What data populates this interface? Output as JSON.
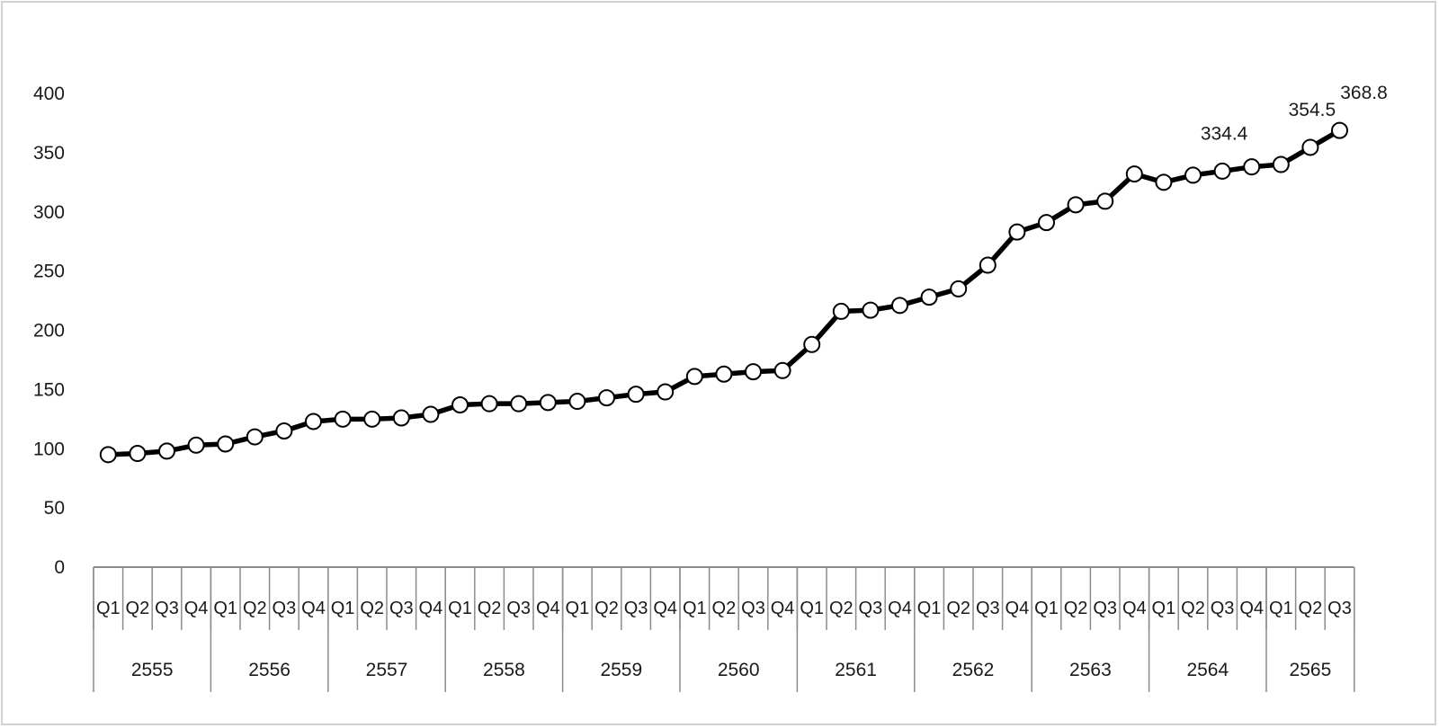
{
  "chart_data": {
    "type": "line",
    "title": "",
    "xlabel": "",
    "ylabel": "",
    "ylim": [
      0,
      400
    ],
    "yticks": [
      "0",
      "50",
      "100",
      "150",
      "200",
      "250",
      "300",
      "350",
      "400"
    ],
    "grid": false,
    "legend": "none",
    "colors": {
      "line": "#000000",
      "marker_fill": "#ffffff",
      "axis": "#8c8c8c",
      "frame": "#d0d0d0"
    },
    "categories": [
      "Q1",
      "Q2",
      "Q3",
      "Q4",
      "Q1",
      "Q2",
      "Q3",
      "Q4",
      "Q1",
      "Q2",
      "Q3",
      "Q4",
      "Q1",
      "Q2",
      "Q3",
      "Q4",
      "Q1",
      "Q2",
      "Q3",
      "Q4",
      "Q1",
      "Q2",
      "Q3",
      "Q4",
      "Q1",
      "Q2",
      "Q3",
      "Q4",
      "Q1",
      "Q2",
      "Q3",
      "Q4",
      "Q1",
      "Q2",
      "Q3",
      "Q4",
      "Q1",
      "Q2",
      "Q3",
      "Q4",
      "Q1",
      "Q2",
      "Q3"
    ],
    "years": [
      {
        "label": "2555",
        "quarters": 4
      },
      {
        "label": "2556",
        "quarters": 4
      },
      {
        "label": "2557",
        "quarters": 4
      },
      {
        "label": "2558",
        "quarters": 4
      },
      {
        "label": "2559",
        "quarters": 4
      },
      {
        "label": "2560",
        "quarters": 4
      },
      {
        "label": "2561",
        "quarters": 4
      },
      {
        "label": "2562",
        "quarters": 4
      },
      {
        "label": "2563",
        "quarters": 4
      },
      {
        "label": "2564",
        "quarters": 4
      },
      {
        "label": "2565",
        "quarters": 3
      }
    ],
    "series": [
      {
        "values": [
          95,
          96,
          98,
          103,
          104,
          110,
          115,
          123,
          125,
          125,
          126,
          129,
          137,
          138,
          138,
          139,
          140,
          143,
          146,
          148,
          161,
          163,
          165,
          166,
          188,
          216,
          217,
          221,
          228,
          235,
          255,
          283,
          291,
          306,
          309,
          332,
          325,
          331,
          334.4,
          338,
          340,
          354.5,
          368.8
        ]
      }
    ],
    "data_labels": [
      {
        "index": 38,
        "text": "334.4"
      },
      {
        "index": 41,
        "text": "354.5"
      },
      {
        "index": 42,
        "text": "368.8"
      }
    ]
  }
}
